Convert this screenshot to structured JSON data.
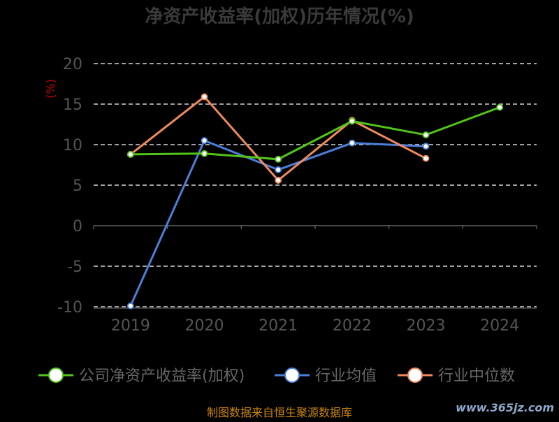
{
  "chart_data": {
    "type": "line",
    "title": "净资产收益率(加权)历年情况(%)",
    "ylabel": "(%)",
    "xlabel": "",
    "categories": [
      "2019",
      "2020",
      "2021",
      "2022",
      "2023",
      "2024"
    ],
    "ylim": [
      -10,
      20
    ],
    "yticks": [
      20,
      15,
      10,
      5,
      0,
      -5,
      -10
    ],
    "grid": true,
    "legend_position": "bottom",
    "series": [
      {
        "name": "公司净资产收益率(加权)",
        "color": "#52c41a",
        "values": [
          8.8,
          8.9,
          8.2,
          12.9,
          11.2,
          14.6
        ]
      },
      {
        "name": "行业均值",
        "color": "#4a7fd9",
        "values": [
          -9.9,
          10.5,
          6.9,
          10.2,
          9.8,
          null
        ]
      },
      {
        "name": "行业中位数",
        "color": "#f08a5d",
        "values": [
          8.8,
          15.9,
          5.6,
          13.0,
          8.3,
          null
        ]
      }
    ]
  },
  "footer": {
    "source": "制图数据来自恒生聚源数据库",
    "watermark": "www.365jz.com"
  }
}
